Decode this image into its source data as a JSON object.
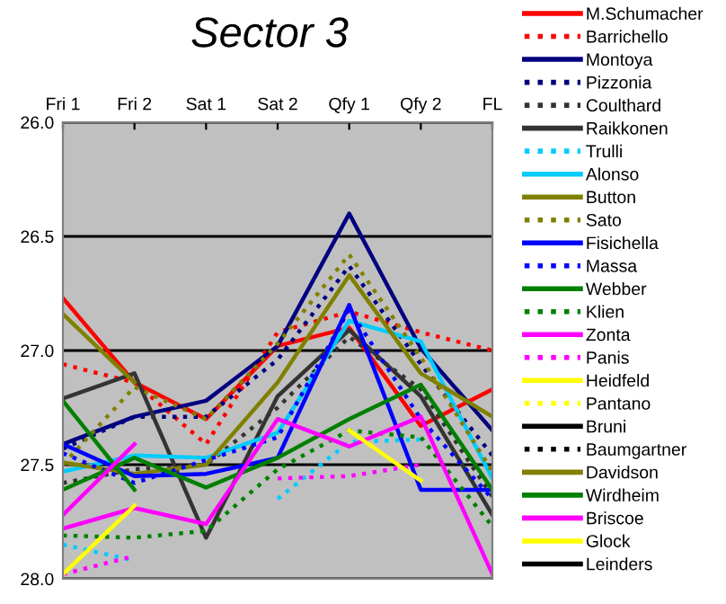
{
  "chart_data": {
    "type": "line",
    "title": "Sector 3",
    "categories": [
      "Fri 1",
      "Fri 2",
      "Sat 1",
      "Sat 2",
      "Qfy 1",
      "Qfy 2",
      "FL"
    ],
    "ylim": [
      28.0,
      26.0
    ],
    "yticks": [
      {
        "value": 26.0,
        "label": "26.0"
      },
      {
        "value": 26.5,
        "label": "26.5"
      },
      {
        "value": 27.0,
        "label": "27.0"
      },
      {
        "value": 27.5,
        "label": "27.5"
      },
      {
        "value": 28.0,
        "label": "28.0"
      }
    ],
    "grid": "y",
    "legend": "right",
    "marker": "none",
    "series": [
      {
        "name": "M.Schumacher",
        "color": "#ff0000",
        "line_style": "solid",
        "values": [
          26.77,
          27.14,
          27.3,
          26.98,
          26.9,
          27.33,
          27.17
        ]
      },
      {
        "name": "Barrichello",
        "color": "#ff0000",
        "line_style": "dotted",
        "values": [
          27.06,
          27.14,
          27.41,
          26.92,
          26.83,
          26.92,
          27.0
        ]
      },
      {
        "name": "Montoya",
        "color": "#000080",
        "line_style": "solid",
        "values": [
          27.41,
          27.29,
          27.22,
          26.98,
          26.4,
          26.99,
          27.35
        ]
      },
      {
        "name": "Pizzonia",
        "color": "#000080",
        "line_style": "dotted",
        "values": [
          27.43,
          27.29,
          27.29,
          27.04,
          26.63,
          27.06,
          27.46
        ]
      },
      {
        "name": "Coulthard",
        "color": "#333333",
        "line_style": "dotted",
        "values": [
          27.58,
          27.52,
          27.5,
          27.25,
          26.94,
          27.17,
          27.64
        ]
      },
      {
        "name": "Raikkonen",
        "color": "#333333",
        "line_style": "solid",
        "values": [
          27.21,
          27.1,
          27.82,
          27.2,
          26.91,
          27.2,
          27.72
        ]
      },
      {
        "name": "Trulli",
        "color": "#00ccff",
        "line_style": "dotted",
        "values": [
          27.85,
          27.92,
          null,
          27.65,
          27.4,
          27.39,
          null
        ]
      },
      {
        "name": "Alonso",
        "color": "#00ccff",
        "line_style": "solid",
        "values": [
          27.53,
          27.46,
          27.47,
          27.36,
          26.87,
          26.96,
          27.56
        ]
      },
      {
        "name": "Button",
        "color": "#808000",
        "line_style": "solid",
        "values": [
          27.49,
          27.54,
          27.5,
          27.14,
          26.67,
          27.1,
          27.29
        ]
      },
      {
        "name": "Sato",
        "color": "#808000",
        "line_style": "dotted",
        "values": [
          27.5,
          27.16,
          27.3,
          26.97,
          26.58,
          27.03,
          27.53
        ]
      },
      {
        "name": "Fisichella",
        "color": "#0000ff",
        "line_style": "solid",
        "values": [
          27.41,
          27.55,
          27.54,
          27.47,
          26.8,
          27.61,
          27.61
        ]
      },
      {
        "name": "Massa",
        "color": "#0000ff",
        "line_style": "dotted",
        "values": [
          27.45,
          27.58,
          27.48,
          27.38,
          26.82,
          27.3,
          27.65
        ]
      },
      {
        "name": "Webber",
        "color": "#008000",
        "line_style": "solid",
        "values": [
          27.61,
          27.47,
          27.6,
          27.47,
          27.3,
          27.15,
          27.61
        ]
      },
      {
        "name": "Klien",
        "color": "#008000",
        "line_style": "dotted",
        "values": [
          27.81,
          27.82,
          27.79,
          27.52,
          27.35,
          27.38,
          27.77
        ]
      },
      {
        "name": "Zonta",
        "color": "#ff00ff",
        "line_style": "solid",
        "values": [
          27.78,
          27.69,
          27.76,
          27.3,
          27.42,
          27.29,
          27.98
        ]
      },
      {
        "name": "Panis",
        "color": "#ff00ff",
        "line_style": "dotted",
        "values": [
          27.98,
          27.9,
          null,
          27.56,
          27.55,
          27.5,
          null
        ]
      },
      {
        "name": "Heidfeld",
        "color": "#ffff00",
        "line_style": "solid",
        "values": [
          null,
          null,
          null,
          null,
          27.35,
          27.57,
          null
        ]
      },
      {
        "name": "Pantano",
        "color": "#ffff00",
        "line_style": "dotted",
        "values": [
          null,
          null,
          null,
          null,
          null,
          null,
          null
        ]
      },
      {
        "name": "Bruni",
        "color": "#000000",
        "line_style": "solid",
        "values": [
          null,
          null,
          null,
          null,
          null,
          null,
          null
        ]
      },
      {
        "name": "Baumgartner",
        "color": "#000000",
        "line_style": "dotted",
        "values": [
          null,
          null,
          null,
          null,
          null,
          null,
          null
        ]
      },
      {
        "name": "Davidson",
        "color": "#808000",
        "line_style": "solid",
        "values": [
          26.84,
          27.14,
          null,
          null,
          null,
          null,
          null
        ]
      },
      {
        "name": "Wirdheim",
        "color": "#008000",
        "line_style": "solid",
        "values": [
          27.22,
          27.61,
          null,
          null,
          null,
          null,
          null
        ]
      },
      {
        "name": "Briscoe",
        "color": "#ff00ff",
        "line_style": "solid",
        "values": [
          27.72,
          27.41,
          null,
          null,
          null,
          null,
          null
        ]
      },
      {
        "name": "Glock",
        "color": "#ffff00",
        "line_style": "solid",
        "values": [
          27.98,
          27.68,
          null,
          null,
          null,
          null,
          null
        ]
      },
      {
        "name": "Leinders",
        "color": "#000000",
        "line_style": "solid",
        "values": [
          null,
          null,
          null,
          null,
          null,
          null,
          null
        ]
      }
    ]
  }
}
